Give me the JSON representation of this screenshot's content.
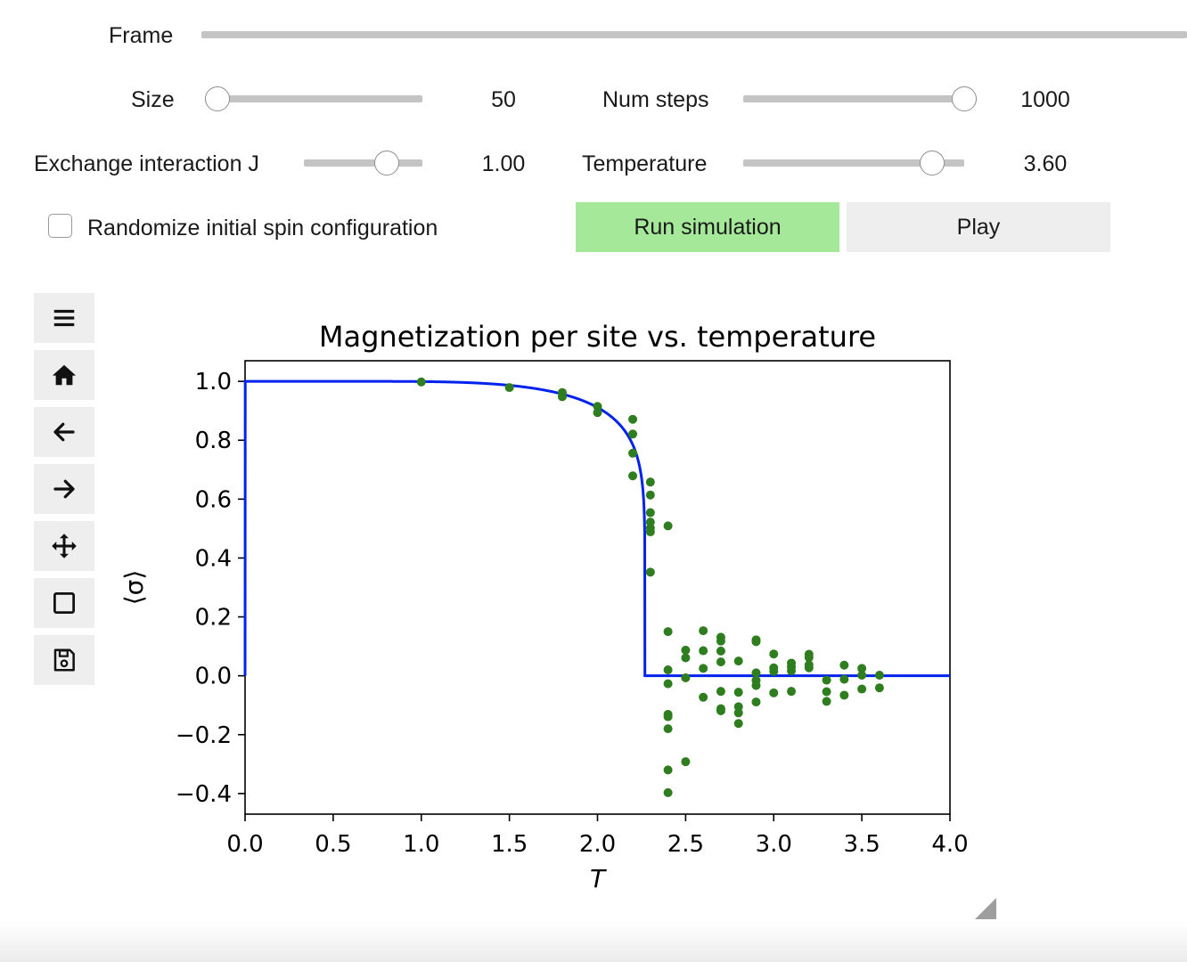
{
  "controls": {
    "frame": {
      "label": "Frame"
    },
    "size": {
      "label": "Size",
      "value": "50",
      "fraction": 0.0
    },
    "num_steps": {
      "label": "Num steps",
      "value": "1000",
      "fraction": 1.0
    },
    "exchange": {
      "label": "Exchange interaction J",
      "value": "1.00",
      "fraction": 0.75
    },
    "temperature": {
      "label": "Temperature",
      "value": "3.60",
      "fraction": 0.9
    },
    "randomize": {
      "label": "Randomize initial spin configuration",
      "checked": false
    },
    "run_button": "Run simulation",
    "play_button": "Play"
  },
  "colors": {
    "run_button": "#a6e89a",
    "play_button": "#eeeeee",
    "curve": "#0022ee",
    "points": "#2e7d1e"
  },
  "toolbar": [
    "menu-icon",
    "home-icon",
    "back-arrow-icon",
    "forward-arrow-icon",
    "pan-icon",
    "zoom-rect-icon",
    "save-icon"
  ],
  "chart_data": {
    "type": "scatter",
    "title": "Magnetization per site vs. temperature",
    "xlabel": "T",
    "ylabel": "⟨σ⟩",
    "xlim": [
      0.0,
      4.0
    ],
    "ylim": [
      -0.47,
      1.07
    ],
    "xticks": [
      "0.0",
      "0.5",
      "1.0",
      "1.5",
      "2.0",
      "2.5",
      "3.0",
      "3.5",
      "4.0"
    ],
    "yticks": [
      "−0.4",
      "−0.2",
      "0.0",
      "0.2",
      "0.4",
      "0.6",
      "0.8",
      "1.0"
    ],
    "grid": false,
    "series": [
      {
        "type": "line",
        "description": "Onsager exact solution",
        "function": "onsager",
        "critical_T": 2.269
      },
      {
        "type": "scatter",
        "points": [
          [
            1.0,
            0.998
          ],
          [
            1.5,
            0.979
          ],
          [
            1.8,
            0.962
          ],
          [
            1.8,
            0.948
          ],
          [
            2.0,
            0.915
          ],
          [
            2.0,
            0.894
          ],
          [
            2.2,
            0.871
          ],
          [
            2.2,
            0.821
          ],
          [
            2.2,
            0.756
          ],
          [
            2.2,
            0.679
          ],
          [
            2.3,
            0.658
          ],
          [
            2.3,
            0.614
          ],
          [
            2.3,
            0.554
          ],
          [
            2.3,
            0.522
          ],
          [
            2.3,
            0.502
          ],
          [
            2.3,
            0.489
          ],
          [
            2.3,
            0.352
          ],
          [
            2.4,
            0.509
          ],
          [
            2.4,
            0.15
          ],
          [
            2.4,
            0.02
          ],
          [
            2.4,
            -0.027
          ],
          [
            2.4,
            -0.131
          ],
          [
            2.4,
            -0.139
          ],
          [
            2.4,
            -0.18
          ],
          [
            2.4,
            -0.32
          ],
          [
            2.4,
            -0.397
          ],
          [
            2.5,
            0.087
          ],
          [
            2.5,
            0.061
          ],
          [
            2.5,
            -0.007
          ],
          [
            2.5,
            -0.292
          ],
          [
            2.6,
            0.153
          ],
          [
            2.6,
            0.085
          ],
          [
            2.6,
            0.025
          ],
          [
            2.6,
            -0.073
          ],
          [
            2.7,
            0.131
          ],
          [
            2.7,
            0.118
          ],
          [
            2.7,
            0.084
          ],
          [
            2.7,
            0.047
          ],
          [
            2.7,
            -0.053
          ],
          [
            2.7,
            -0.112
          ],
          [
            2.7,
            -0.119
          ],
          [
            2.8,
            0.05
          ],
          [
            2.8,
            -0.056
          ],
          [
            2.8,
            -0.105
          ],
          [
            2.8,
            -0.126
          ],
          [
            2.8,
            -0.162
          ],
          [
            2.9,
            0.122
          ],
          [
            2.9,
            0.116
          ],
          [
            2.9,
            0.01
          ],
          [
            2.9,
            -0.016
          ],
          [
            2.9,
            -0.033
          ],
          [
            2.9,
            -0.089
          ],
          [
            3.0,
            0.074
          ],
          [
            3.0,
            0.027
          ],
          [
            3.0,
            0.015
          ],
          [
            3.0,
            -0.058
          ],
          [
            3.1,
            0.043
          ],
          [
            3.1,
            0.03
          ],
          [
            3.1,
            0.017
          ],
          [
            3.1,
            -0.053
          ],
          [
            3.2,
            0.073
          ],
          [
            3.2,
            0.062
          ],
          [
            3.2,
            0.037
          ],
          [
            3.2,
            0.027
          ],
          [
            3.3,
            -0.015
          ],
          [
            3.3,
            -0.054
          ],
          [
            3.3,
            -0.087
          ],
          [
            3.4,
            0.036
          ],
          [
            3.4,
            -0.012
          ],
          [
            3.4,
            -0.066
          ],
          [
            3.5,
            0.025
          ],
          [
            3.5,
            0.002
          ],
          [
            3.5,
            -0.045
          ],
          [
            3.6,
            0.002
          ],
          [
            3.6,
            -0.041
          ]
        ]
      }
    ]
  }
}
